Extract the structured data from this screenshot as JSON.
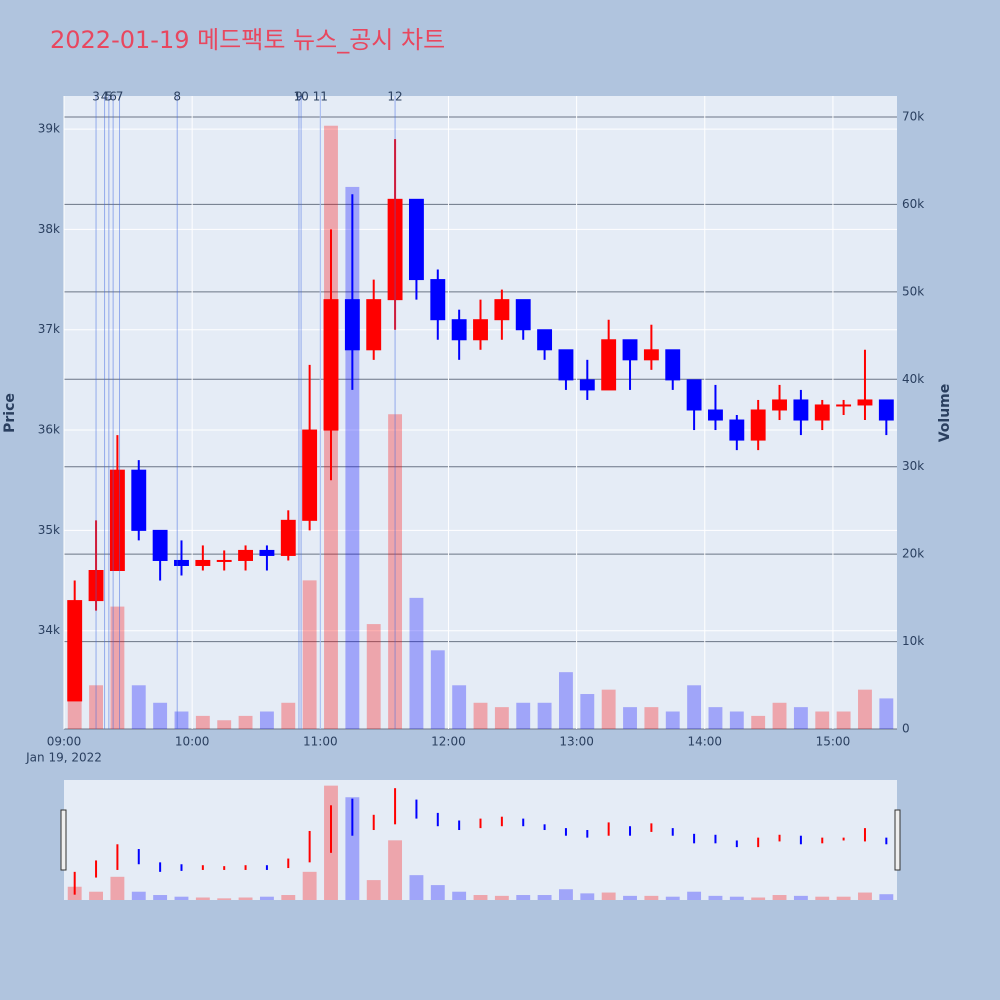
{
  "chart_data": {
    "type": "candlestick",
    "title": "2022-01-19 메드팩토 뉴스_공시 차트",
    "y_label": "Price",
    "y2_label": "Volume",
    "increasing_color": "#ff0000",
    "decreasing_color": "#0000ff",
    "x": [
      "2022-01-19 09:00",
      "2022-01-19 09:10",
      "2022-01-19 09:20",
      "2022-01-19 09:30",
      "2022-01-19 09:40",
      "2022-01-19 09:50",
      "2022-01-19 10:00",
      "2022-01-19 10:10",
      "2022-01-19 10:20",
      "2022-01-19 10:30",
      "2022-01-19 10:40",
      "2022-01-19 10:50",
      "2022-01-19 11:00",
      "2022-01-19 11:10",
      "2022-01-19 11:20",
      "2022-01-19 11:30",
      "2022-01-19 11:40",
      "2022-01-19 11:50",
      "2022-01-19 12:00",
      "2022-01-19 12:10",
      "2022-01-19 12:20",
      "2022-01-19 12:30",
      "2022-01-19 12:40",
      "2022-01-19 12:50",
      "2022-01-19 13:00",
      "2022-01-19 13:10",
      "2022-01-19 13:20",
      "2022-01-19 13:30",
      "2022-01-19 13:40",
      "2022-01-19 13:50",
      "2022-01-19 14:00",
      "2022-01-19 14:10",
      "2022-01-19 14:20",
      "2022-01-19 14:30",
      "2022-01-19 14:40",
      "2022-01-19 14:50",
      "2022-01-19 15:00",
      "2022-01-19 15:10",
      "2022-01-19 15:20"
    ],
    "open": [
      33300,
      34300,
      34600,
      35600,
      35000,
      34700,
      34650,
      34700,
      34700,
      34800,
      34750,
      35100,
      36000,
      37300,
      36800,
      37300,
      38300,
      37500,
      37100,
      36900,
      37100,
      37300,
      37000,
      36800,
      36500,
      36400,
      36900,
      36700,
      36800,
      36500,
      36200,
      36100,
      35900,
      36200,
      36300,
      36100,
      36250,
      36250,
      36300
    ],
    "high": [
      34500,
      35100,
      35950,
      35700,
      35000,
      34900,
      34850,
      34800,
      34850,
      34850,
      35200,
      36650,
      38000,
      38350,
      37500,
      38900,
      38300,
      37600,
      37200,
      37300,
      37400,
      37300,
      37000,
      36800,
      36700,
      37100,
      36900,
      37050,
      36800,
      36500,
      36450,
      36150,
      36300,
      36450,
      36400,
      36300,
      36300,
      36800,
      36300
    ],
    "low": [
      33300,
      34200,
      34600,
      34900,
      34500,
      34550,
      34600,
      34600,
      34600,
      34600,
      34700,
      35000,
      35500,
      36400,
      36700,
      37000,
      37300,
      36900,
      36700,
      36800,
      36900,
      36900,
      36700,
      36400,
      36300,
      36400,
      36400,
      36600,
      36400,
      36000,
      36000,
      35800,
      35800,
      36100,
      35950,
      36000,
      36150,
      36100,
      35950
    ],
    "close": [
      34300,
      34600,
      35600,
      35000,
      34700,
      34650,
      34700,
      34700,
      34800,
      34750,
      35100,
      36000,
      37300,
      36800,
      37300,
      38300,
      37500,
      37100,
      36900,
      37100,
      37300,
      37000,
      36800,
      36500,
      36400,
      36900,
      36700,
      36800,
      36500,
      36200,
      36100,
      35900,
      36200,
      36300,
      36100,
      36250,
      36250,
      36300,
      36100
    ],
    "volume": [
      8000,
      5000,
      14000,
      5000,
      3000,
      2000,
      1500,
      1000,
      1500,
      2000,
      3000,
      17000,
      69000,
      62000,
      12000,
      36000,
      15000,
      9000,
      5000,
      3000,
      2500,
      3000,
      3000,
      6500,
      4000,
      4500,
      2500,
      2500,
      2000,
      5000,
      2500,
      2000,
      1500,
      3000,
      2500,
      2000,
      2000,
      4500,
      3500
    ],
    "xlim": [
      "2022-01-19 09:00",
      "2022-01-19 15:30"
    ],
    "xticks": [
      {
        "value": "2022-01-19 09:00",
        "label": "09:00"
      },
      {
        "value": "2022-01-19 10:00",
        "label": "10:00"
      },
      {
        "value": "2022-01-19 11:00",
        "label": "11:00"
      },
      {
        "value": "2022-01-19 12:00",
        "label": "12:00"
      },
      {
        "value": "2022-01-19 13:00",
        "label": "13:00"
      },
      {
        "value": "2022-01-19 14:00",
        "label": "14:00"
      },
      {
        "value": "2022-01-19 15:00",
        "label": "15:00"
      }
    ],
    "x_date_label": "Jan 19, 2022",
    "ylim": [
      33020,
      39330
    ],
    "yticks": [
      {
        "value": 34000,
        "label": "34k"
      },
      {
        "value": 35000,
        "label": "35k"
      },
      {
        "value": 36000,
        "label": "36k"
      },
      {
        "value": 37000,
        "label": "37k"
      },
      {
        "value": 38000,
        "label": "38k"
      },
      {
        "value": 39000,
        "label": "39k"
      }
    ],
    "y2lim": [
      0,
      72400
    ],
    "y2ticks": [
      0,
      {
        "value": 10000,
        "label": "10k"
      },
      {
        "value": 20000,
        "label": "20k"
      },
      {
        "value": 30000,
        "label": "30k"
      },
      {
        "value": 40000,
        "label": "40k"
      },
      {
        "value": 50000,
        "label": "50k"
      },
      {
        "value": 60000,
        "label": "60k"
      },
      {
        "value": 70000,
        "label": "70k"
      }
    ],
    "annotations": [
      {
        "x": "2022-01-19 09:15",
        "text": "3"
      },
      {
        "x": "2022-01-19 09:19",
        "text": "4"
      },
      {
        "x": "2022-01-19 09:21",
        "text": "5"
      },
      {
        "x": "2022-01-19 09:23",
        "text": "6"
      },
      {
        "x": "2022-01-19 09:26",
        "text": "7"
      },
      {
        "x": "2022-01-19 09:53",
        "text": "8"
      },
      {
        "x": "2022-01-19 10:50",
        "text": "9"
      },
      {
        "x": "2022-01-19 10:51",
        "text": "10"
      },
      {
        "x": "2022-01-19 11:00",
        "text": "11"
      },
      {
        "x": "2022-01-19 11:35",
        "text": "12"
      }
    ]
  }
}
